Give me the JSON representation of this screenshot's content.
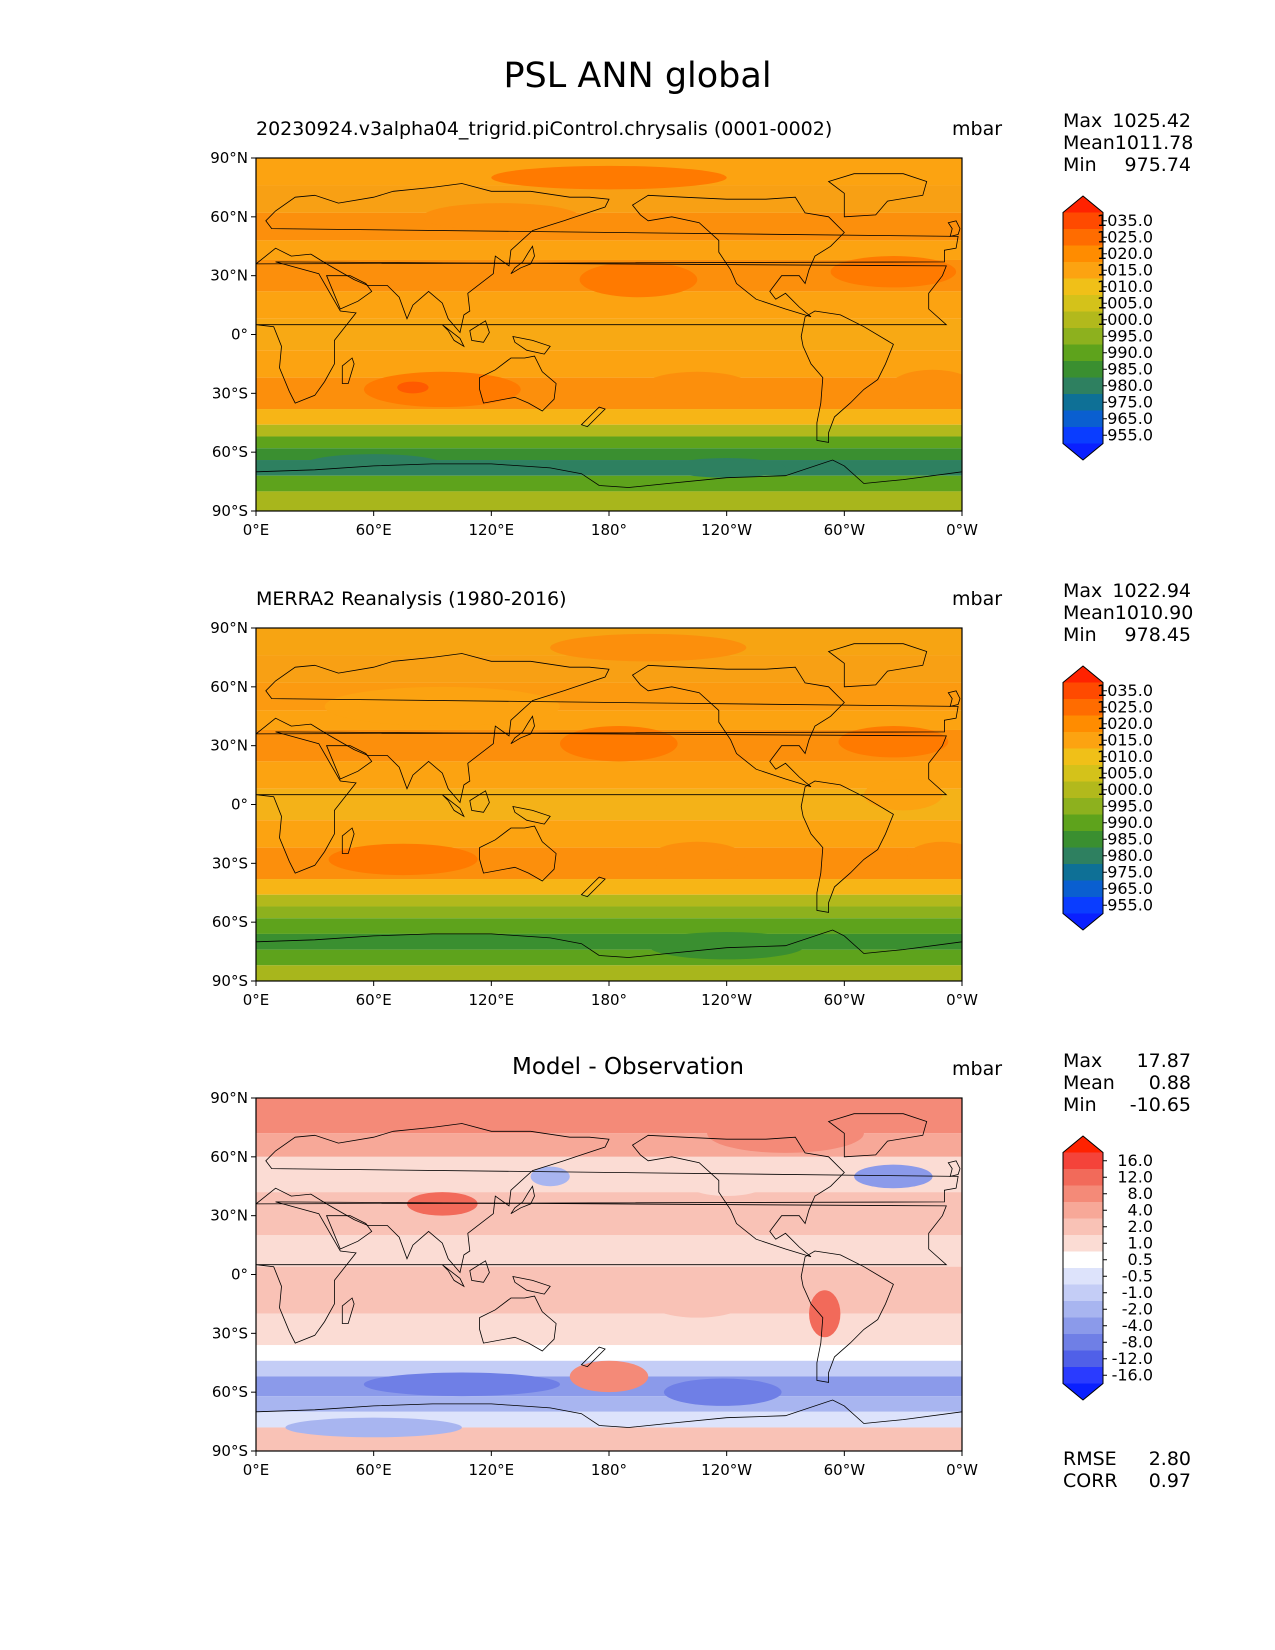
{
  "title": "PSL ANN global",
  "lon_ticks": [
    "0°E",
    "60°E",
    "120°E",
    "180°",
    "120°W",
    "60°W",
    "0°W"
  ],
  "lat_ticks": [
    "90°N",
    "60°N",
    "30°N",
    "0°",
    "30°S",
    "60°S",
    "90°S"
  ],
  "panels": [
    {
      "title": "20230924.v3alpha04_trigrid.piControl.chrysalis (0001-0002)",
      "units": "mbar",
      "stats": {
        "max_label": "Max",
        "max": "1025.42",
        "mean_label": "Mean",
        "mean": "1011.78",
        "min_label": "Min",
        "min": "975.74"
      },
      "colorbar_labels": [
        "1035.0",
        "1025.0",
        "1020.0",
        "1015.0",
        "1010.0",
        "1005.0",
        "1000.0",
        "995.0",
        "990.0",
        "985.0",
        "980.0",
        "975.0",
        "965.0",
        "955.0"
      ],
      "colorbar_colors": [
        "#ff2200",
        "#ff4a00",
        "#ff6c00",
        "#ff8c00",
        "#fca311",
        "#f0c018",
        "#d4c21a",
        "#b2b91c",
        "#8db11e",
        "#5ea31c",
        "#3a8f30",
        "#2e8060",
        "#0e7096",
        "#0a5fd0",
        "#0a3dff",
        "#0a20ff"
      ]
    },
    {
      "title": "MERRA2 Reanalysis (1980-2016)",
      "units": "mbar",
      "stats": {
        "max_label": "Max",
        "max": "1022.94",
        "mean_label": "Mean",
        "mean": "1010.90",
        "min_label": "Min",
        "min": "978.45"
      },
      "colorbar_labels": [
        "1035.0",
        "1025.0",
        "1020.0",
        "1015.0",
        "1010.0",
        "1005.0",
        "1000.0",
        "995.0",
        "990.0",
        "985.0",
        "980.0",
        "975.0",
        "965.0",
        "955.0"
      ],
      "colorbar_colors": [
        "#ff2200",
        "#ff4a00",
        "#ff6c00",
        "#ff8c00",
        "#fca311",
        "#f0c018",
        "#d4c21a",
        "#b2b91c",
        "#8db11e",
        "#5ea31c",
        "#3a8f30",
        "#2e8060",
        "#0e7096",
        "#0a5fd0",
        "#0a3dff",
        "#0a20ff"
      ]
    },
    {
      "title": "Model - Observation",
      "units": "mbar",
      "stats": {
        "max_label": "Max",
        "max": "17.87",
        "mean_label": "Mean",
        "mean": "0.88",
        "min_label": "Min",
        "min": "-10.65"
      },
      "colorbar_labels": [
        "16.0",
        "12.0",
        "8.0",
        "4.0",
        "2.0",
        "1.0",
        "0.5",
        "-0.5",
        "-1.0",
        "-2.0",
        "-4.0",
        "-8.0",
        "-12.0",
        "-16.0"
      ],
      "colorbar_colors": [
        "#ff2200",
        "#f4433a",
        "#f26a5a",
        "#f48a78",
        "#f7a898",
        "#f9c2b6",
        "#fbdcd4",
        "#ffffff",
        "#dde3fb",
        "#c4cdf6",
        "#a8b5f0",
        "#8b9aea",
        "#6f7fe6",
        "#5060e8",
        "#2a3bff",
        "#0a20ff"
      ],
      "extra": {
        "rmse_label": "RMSE",
        "rmse": "2.80",
        "corr_label": "CORR",
        "corr": "0.97"
      }
    }
  ]
}
